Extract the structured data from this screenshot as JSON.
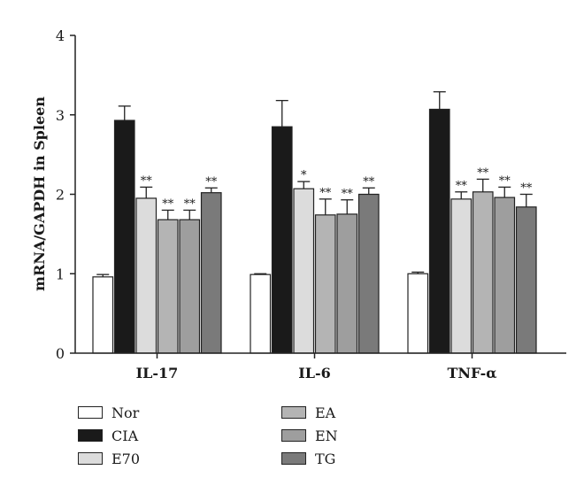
{
  "chart_data": {
    "type": "bar",
    "title": "",
    "xlabel": "",
    "ylabel": "mRNA/GAPDH in Spleen",
    "ylim": [
      0,
      4
    ],
    "yticks": [
      "0",
      "1",
      "2",
      "3",
      "4"
    ],
    "categories": [
      "IL-17",
      "IL-6",
      "TNF-α"
    ],
    "series": [
      {
        "name": "Nor",
        "color": "#ffffff",
        "values": [
          0.96,
          0.99,
          1.0
        ],
        "errors": [
          0.03,
          0.01,
          0.02
        ],
        "sig": [
          "",
          "",
          ""
        ]
      },
      {
        "name": "CIA",
        "color": "#1a1a1a",
        "values": [
          2.93,
          2.85,
          3.07
        ],
        "errors": [
          0.18,
          0.33,
          0.22
        ],
        "sig": [
          "",
          "",
          ""
        ]
      },
      {
        "name": "E70",
        "color": "#dcdcdc",
        "values": [
          1.95,
          2.07,
          1.94
        ],
        "errors": [
          0.14,
          0.09,
          0.09
        ],
        "sig": [
          "**",
          "*",
          "**"
        ]
      },
      {
        "name": "EA",
        "color": "#b4b4b4",
        "values": [
          1.68,
          1.74,
          2.03
        ],
        "errors": [
          0.12,
          0.2,
          0.16
        ],
        "sig": [
          "**",
          "**",
          "**"
        ]
      },
      {
        "name": "EN",
        "color": "#9e9e9e",
        "values": [
          1.68,
          1.75,
          1.96
        ],
        "errors": [
          0.12,
          0.18,
          0.13
        ],
        "sig": [
          "**",
          "**",
          "**"
        ]
      },
      {
        "name": "TG",
        "color": "#7a7a7a",
        "values": [
          2.02,
          2.0,
          1.84
        ],
        "errors": [
          0.06,
          0.08,
          0.16
        ],
        "sig": [
          "**",
          "**",
          "**"
        ]
      }
    ],
    "grid": false,
    "legend_position": "bottom"
  }
}
